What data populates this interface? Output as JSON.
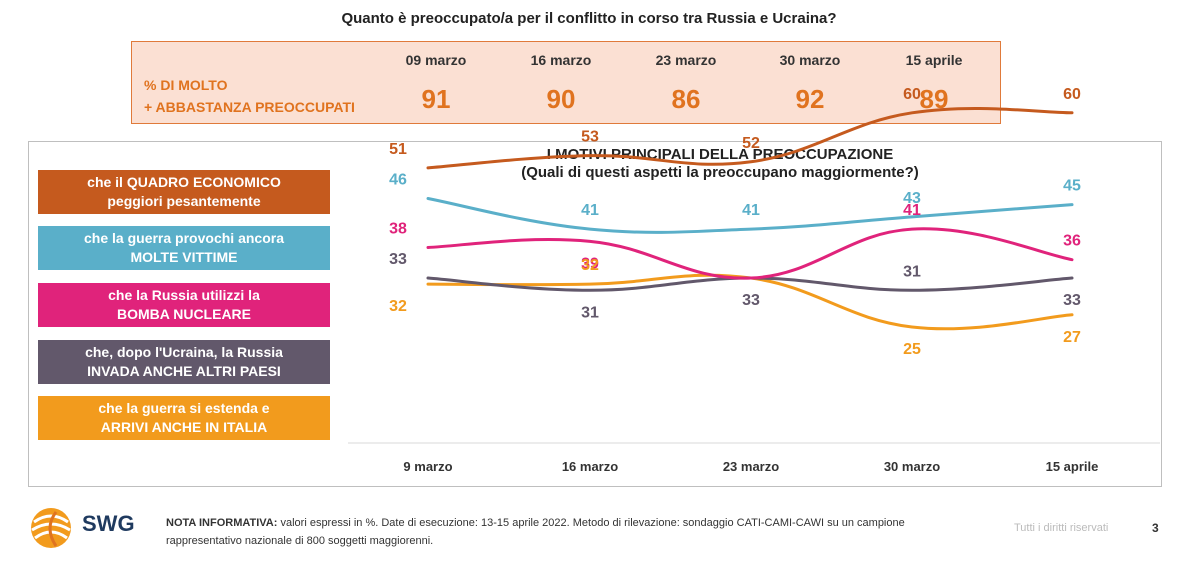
{
  "title": "Quanto è preoccupato/a per il conflitto in corso tra Russia e Ucraina?",
  "summary": {
    "label_line1": "% DI MOLTO",
    "label_line2": "+ ABBASTANZA PREOCCUPATI",
    "dates": [
      "09 marzo",
      "16 marzo",
      "23 marzo",
      "30 marzo",
      "15 aprile"
    ],
    "values": [
      "91",
      "90",
      "86",
      "92",
      "89"
    ]
  },
  "chart_title_line1": "I MOTIVI PRINCIPALI DELLA PREOCCUPAZIONE",
  "chart_title_line2": "(Quali di questi aspetti la preoccupano maggiormente?)",
  "legend": [
    {
      "line1": "che il QUADRO ECONOMICO",
      "line2": "peggiori pesantemente",
      "color": "#c55a1e"
    },
    {
      "line1": "che la guerra provochi ancora",
      "line2": "MOLTE VITTIME",
      "color": "#5aafc9"
    },
    {
      "line1": "che la Russia utilizzi la",
      "line2": "BOMBA NUCLEARE",
      "color": "#e0237b"
    },
    {
      "line1": "che, dopo l'Ucraina, la Russia",
      "line2": "INVADA ANCHE ALTRI PAESI",
      "color": "#62586b"
    },
    {
      "line1": "che la guerra si estenda e",
      "line2": "ARRIVI ANCHE IN ITALIA",
      "color": "#f29b1d"
    }
  ],
  "chart_data": {
    "type": "line",
    "title": "I MOTIVI PRINCIPALI DELLA PREOCCUPAZIONE",
    "subtitle": "(Quali di questi aspetti la preoccupano maggiormente?)",
    "categories": [
      "9 marzo",
      "16 marzo",
      "23 marzo",
      "30 marzo",
      "15 aprile"
    ],
    "series": [
      {
        "name": "che il QUADRO ECONOMICO peggiori pesantemente",
        "color": "#c55a1e",
        "values": [
          51,
          53,
          52,
          60,
          60
        ]
      },
      {
        "name": "che la guerra provochi ancora MOLTE VITTIME",
        "color": "#5aafc9",
        "values": [
          46,
          41,
          41,
          43,
          45
        ]
      },
      {
        "name": "che la Russia utilizzi la BOMBA NUCLEARE",
        "color": "#e0237b",
        "values": [
          38,
          39,
          33,
          41,
          36
        ]
      },
      {
        "name": "che, dopo l'Ucraina, la Russia INVADA ANCHE ALTRI PAESI",
        "color": "#62586b",
        "values": [
          33,
          31,
          33,
          31,
          33
        ]
      },
      {
        "name": "che la guerra si estenda e ARRIVI ANCHE IN ITALIA",
        "color": "#f29b1d",
        "values": [
          32,
          32,
          33,
          25,
          27
        ]
      }
    ],
    "label_side": [
      [
        "above",
        "above",
        "above",
        "above",
        "above"
      ],
      [
        "above",
        "above",
        "above",
        "above",
        "above"
      ],
      [
        "above",
        "below",
        "none",
        "above",
        "above"
      ],
      [
        "above",
        "below",
        "below",
        "above",
        "below"
      ],
      [
        "below",
        "above",
        "none",
        "below",
        "below"
      ]
    ],
    "legend_position": "left",
    "grid": false
  },
  "footer": {
    "logo_text": "SWG",
    "note_bold": "NOTA INFORMATIVA:",
    "note_line1": " valori espressi in %. Date di esecuzione: 13-15 aprile 2022. Metodo di rilevazione: sondaggio CATI-CAMI-CAWI su un campione",
    "note_line2": "rappresentativo nazionale di 800 soggetti maggiorenni.",
    "rights": "Tutti i diritti riservati",
    "page": "3"
  }
}
